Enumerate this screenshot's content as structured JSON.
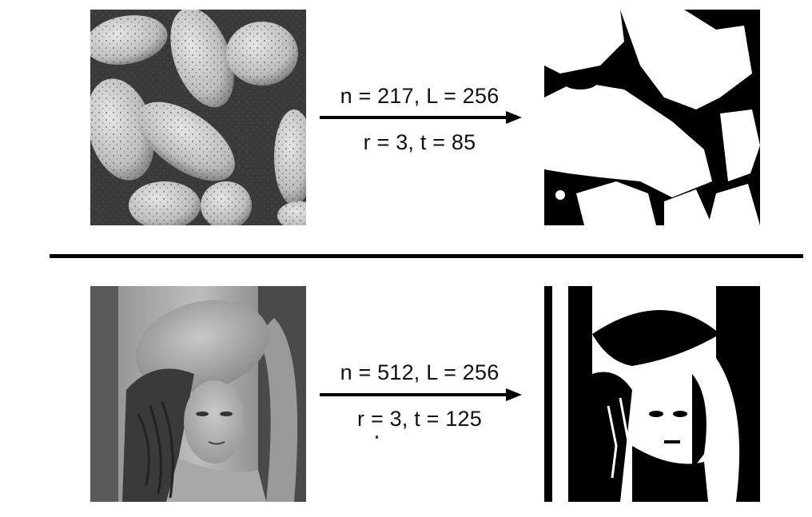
{
  "figure": {
    "top": {
      "params_line1": "n = 217, L = 256",
      "params_line2": "r = 3, t = 85",
      "input_image": "peppers-grayscale-image",
      "output_image": "peppers-binary-segmentation-image"
    },
    "bottom": {
      "params_line1": "n = 512, L = 256",
      "params_line2": "r = 3, t = 125",
      "input_image": "lena-grayscale-image",
      "output_image": "lena-binary-segmentation-image"
    },
    "colors": {
      "arrow": "#000000",
      "divider": "#000000",
      "text": "#111111",
      "binary_foreground": "#ffffff",
      "binary_background": "#000000"
    }
  }
}
